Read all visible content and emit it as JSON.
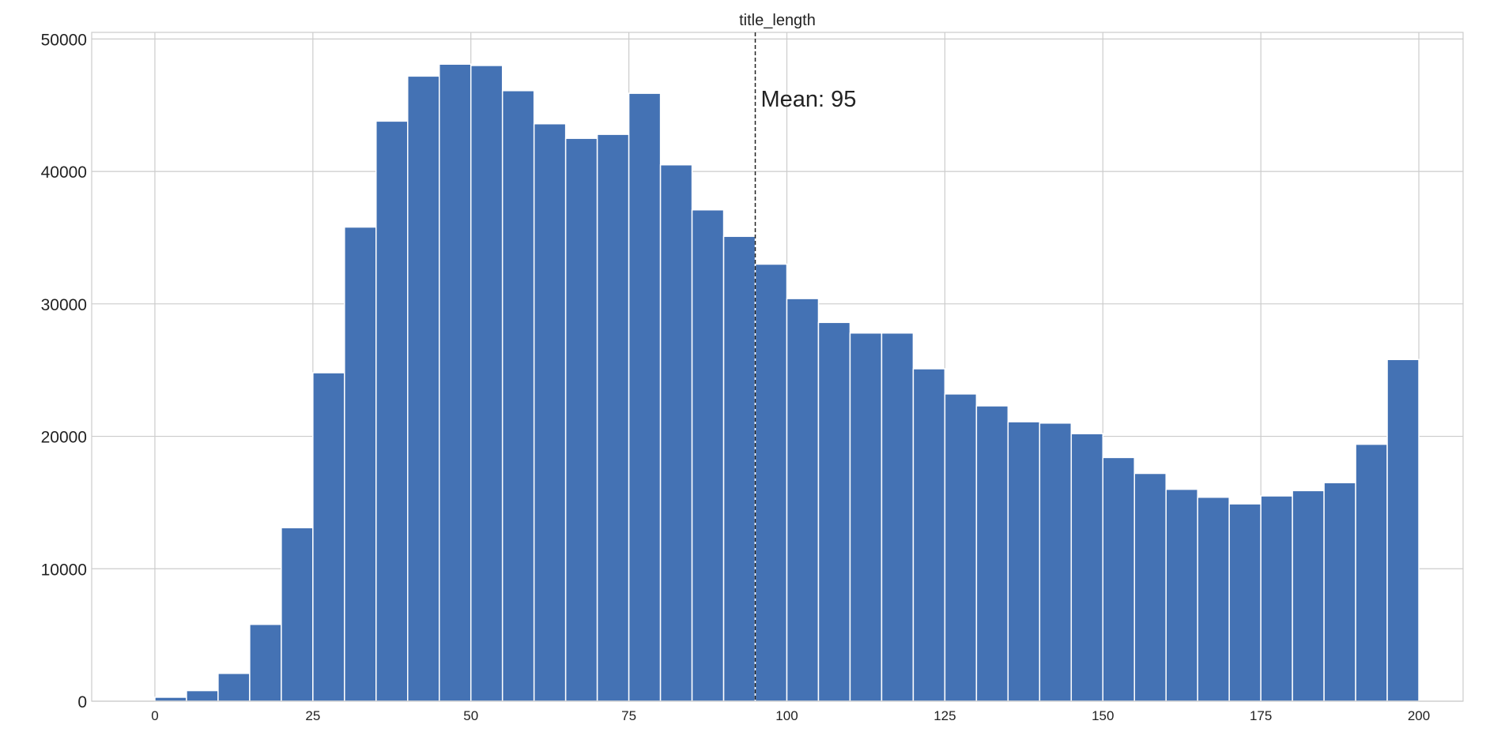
{
  "chart_data": {
    "type": "bar",
    "title": "title_length",
    "xlabel": "",
    "ylabel": "",
    "bin_width": 5,
    "bin_edges_start": [
      0,
      5,
      10,
      15,
      20,
      25,
      30,
      35,
      40,
      45,
      50,
      55,
      60,
      65,
      70,
      75,
      80,
      85,
      90,
      95,
      100,
      105,
      110,
      115,
      120,
      125,
      130,
      135,
      140,
      145,
      150,
      155,
      160,
      165,
      170,
      175,
      180,
      185,
      190,
      195
    ],
    "values": [
      300,
      800,
      2100,
      5800,
      13100,
      24800,
      35800,
      43800,
      47200,
      48100,
      48000,
      46100,
      43600,
      42500,
      42800,
      45900,
      40500,
      37100,
      35100,
      33000,
      30400,
      28600,
      27800,
      27800,
      25100,
      23200,
      22300,
      21100,
      21000,
      20200,
      18400,
      17200,
      16000,
      15400,
      14900,
      15500,
      15900,
      16500,
      19400,
      25800
    ],
    "xlim": [
      -10,
      207
    ],
    "ylim": [
      0,
      50500
    ],
    "xticks": [
      0,
      25,
      50,
      75,
      100,
      125,
      150,
      175,
      200
    ],
    "yticks": [
      0,
      10000,
      20000,
      30000,
      40000,
      50000
    ],
    "bar_color": "#4472b4",
    "grid": true,
    "mean": 95,
    "annotation": "Mean: 95"
  }
}
